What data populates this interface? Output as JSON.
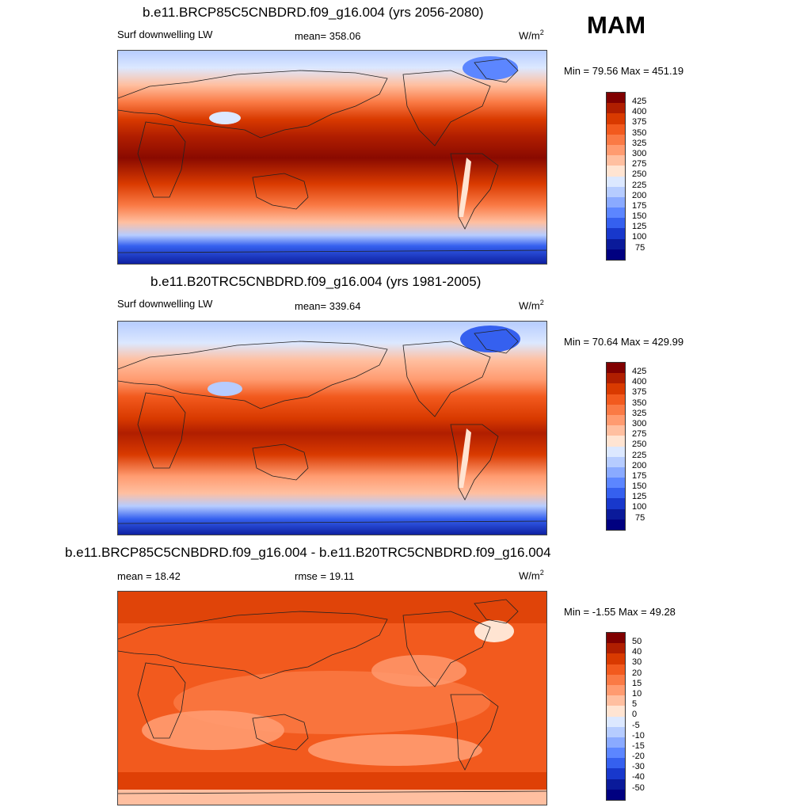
{
  "season": "MAM",
  "panels": [
    {
      "title": "b.e11.BRCP85C5CNBDRD.f09_g16.004 (yrs 2056-2080)",
      "left_label": "Surf downwelling LW",
      "center_label": "mean= 358.06",
      "units_base": "W/m",
      "units_sup": "2",
      "minmax": "Min =  79.56 Max = 451.19",
      "colorbar_labels": [
        "425",
        "400",
        "375",
        "350",
        "325",
        "300",
        "275",
        "250",
        "225",
        "200",
        "175",
        "150",
        "125",
        "100",
        "75"
      ]
    },
    {
      "title": "b.e11.B20TRC5CNBDRD.f09_g16.004 (yrs 1981-2005)",
      "left_label": "Surf downwelling LW",
      "center_label": "mean= 339.64",
      "units_base": "W/m",
      "units_sup": "2",
      "minmax": "Min =  70.64 Max = 429.99",
      "colorbar_labels": [
        "425",
        "400",
        "375",
        "350",
        "325",
        "300",
        "275",
        "250",
        "225",
        "200",
        "175",
        "150",
        "125",
        "100",
        "75"
      ]
    },
    {
      "title": "b.e11.BRCP85C5CNBDRD.f09_g16.004 - b.e11.B20TRC5CNBDRD.f09_g16.004",
      "left_label": "mean =  18.42",
      "center_label": "rmse =  19.11",
      "units_base": "W/m",
      "units_sup": "2",
      "minmax": "Min =  -1.55 Max =  49.28",
      "colorbar_labels": [
        "50",
        "40",
        "30",
        "20",
        "15",
        "10",
        "5",
        "0",
        "-5",
        "-10",
        "-15",
        "-20",
        "-30",
        "-40",
        "-50"
      ]
    }
  ],
  "colors": {
    "scale": [
      "#800000",
      "#b01e00",
      "#d93a00",
      "#f25a1e",
      "#fa7a45",
      "#ff9b70",
      "#ffbfa0",
      "#ffe4d2",
      "#dce8ff",
      "#b6ccff",
      "#8aaaff",
      "#5c86ff",
      "#3560ef",
      "#1838cc",
      "#0a1a9a",
      "#000080"
    ]
  }
}
